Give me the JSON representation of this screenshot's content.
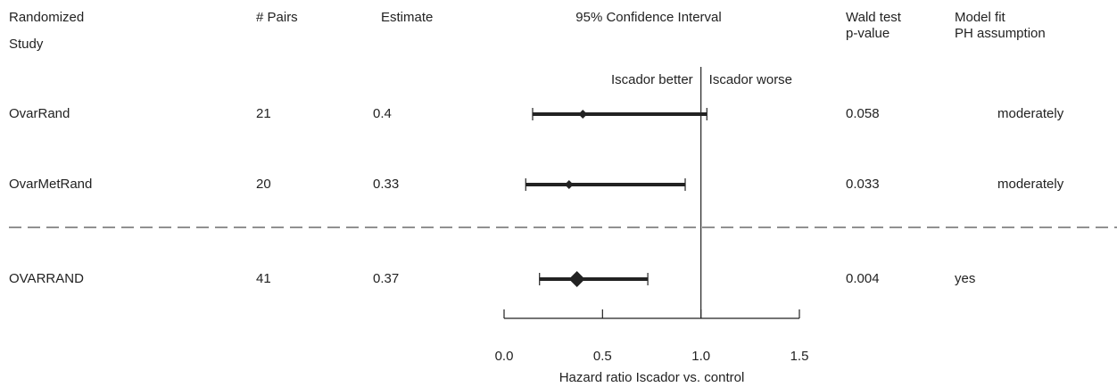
{
  "chart_data": {
    "type": "forest",
    "headers": {
      "study": [
        "Randomized",
        "Study"
      ],
      "pairs": "# Pairs",
      "estimate": "Estimate",
      "ci": "95% Confidence Interval",
      "pvalue": [
        "Wald test",
        "p-value"
      ],
      "fit": [
        "Model fit",
        "PH assumption"
      ]
    },
    "annotations": [
      "Iscador better",
      "Iscador worse"
    ],
    "xlabel": "Hazard ratio Iscador vs. control",
    "studies": [
      "OvarRand",
      "OvarMetRand",
      "OVARRAND"
    ],
    "pairs": [
      21,
      20,
      41
    ],
    "estimates": [
      0.4,
      0.33,
      0.37
    ],
    "lower": [
      0.145,
      0.11,
      0.18
    ],
    "upper": [
      1.03,
      0.92,
      0.73
    ],
    "pvalues": [
      0.058,
      0.033,
      0.004
    ],
    "fit": [
      "moderately",
      "moderately",
      "yes"
    ],
    "summary": [
      false,
      false,
      true
    ],
    "reference": 1,
    "xlim": [
      0,
      1.5
    ],
    "xticks": [
      {
        "value": 0,
        "label": "0.0"
      },
      0.5,
      {
        "value": 1,
        "label": "1.0"
      },
      1.5
    ],
    "color": "#222222"
  }
}
